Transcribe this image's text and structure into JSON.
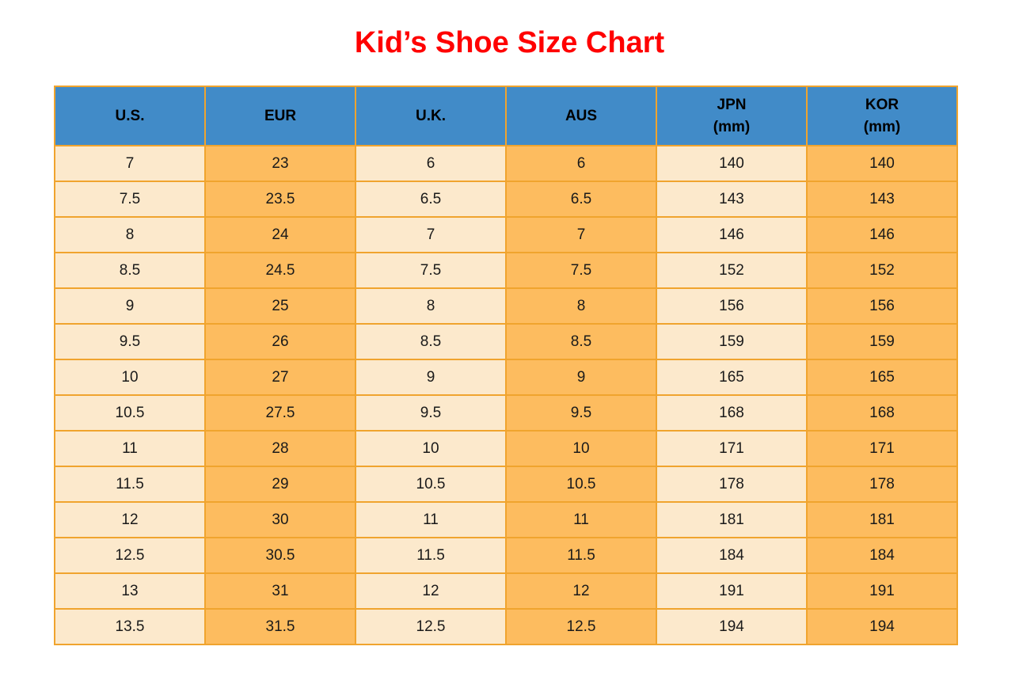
{
  "page": {
    "title": "Kid’s Shoe Size Chart"
  },
  "colors": {
    "title_red": "#FF0000",
    "header_blue": "#418BC8",
    "cell_cream": "#FCE9CC",
    "cell_orange": "#FDBC5F",
    "border_orange": "#F0A42E",
    "text_black": "#1A1A1A",
    "page_background": "#FFFFFF"
  },
  "table": {
    "headers": [
      "U.S.",
      "EUR",
      "U.K.",
      "AUS",
      "JPN\n(mm)",
      "KOR\n(mm)"
    ]
  },
  "chart_data": {
    "type": "table",
    "title": "Kid’s Shoe Size Chart",
    "columns": [
      "U.S.",
      "EUR",
      "U.K.",
      "AUS",
      "JPN (mm)",
      "KOR (mm)"
    ],
    "rows": [
      [
        "7",
        "23",
        "6",
        "6",
        "140",
        "140"
      ],
      [
        "7.5",
        "23.5",
        "6.5",
        "6.5",
        "143",
        "143"
      ],
      [
        "8",
        "24",
        "7",
        "7",
        "146",
        "146"
      ],
      [
        "8.5",
        "24.5",
        "7.5",
        "7.5",
        "152",
        "152"
      ],
      [
        "9",
        "25",
        "8",
        "8",
        "156",
        "156"
      ],
      [
        "9.5",
        "26",
        "8.5",
        "8.5",
        "159",
        "159"
      ],
      [
        "10",
        "27",
        "9",
        "9",
        "165",
        "165"
      ],
      [
        "10.5",
        "27.5",
        "9.5",
        "9.5",
        "168",
        "168"
      ],
      [
        "11",
        "28",
        "10",
        "10",
        "171",
        "171"
      ],
      [
        "11.5",
        "29",
        "10.5",
        "10.5",
        "178",
        "178"
      ],
      [
        "12",
        "30",
        "11",
        "11",
        "181",
        "181"
      ],
      [
        "12.5",
        "30.5",
        "11.5",
        "11.5",
        "184",
        "184"
      ],
      [
        "13",
        "31",
        "12",
        "12",
        "191",
        "191"
      ],
      [
        "13.5",
        "31.5",
        "12.5",
        "12.5",
        "194",
        "194"
      ]
    ]
  }
}
